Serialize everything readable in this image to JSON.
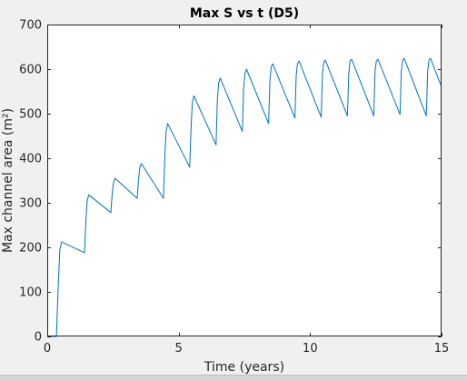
{
  "chart_data": {
    "type": "line",
    "title": "Max S vs t (D5)",
    "xlabel": "Time (years)",
    "ylabel": "Max channel area (m²)",
    "xlim": [
      0,
      15
    ],
    "ylim": [
      0,
      700
    ],
    "xticks": [
      0,
      5,
      10,
      15
    ],
    "yticks": [
      0,
      100,
      200,
      300,
      400,
      500,
      600,
      700
    ],
    "grid": false,
    "legend": "none",
    "series": [
      {
        "color": "#0072bd",
        "x": [
          0,
          0.35,
          0.42,
          0.48,
          0.55,
          1.42,
          1.47,
          1.52,
          1.58,
          2.42,
          2.47,
          2.52,
          2.58,
          3.42,
          3.47,
          3.52,
          3.58,
          4.42,
          4.47,
          4.52,
          4.58,
          5.42,
          5.47,
          5.52,
          5.58,
          6.42,
          6.47,
          6.52,
          6.58,
          7.42,
          7.47,
          7.52,
          7.58,
          8.42,
          8.47,
          8.52,
          8.58,
          9.42,
          9.47,
          9.52,
          9.58,
          10.42,
          10.47,
          10.52,
          10.58,
          11.42,
          11.47,
          11.52,
          11.58,
          12.42,
          12.47,
          12.52,
          12.58,
          13.42,
          13.47,
          13.52,
          13.58,
          14.42,
          14.47,
          14.52,
          14.58,
          15.0
        ],
        "y": [
          0,
          0,
          120,
          195,
          212,
          188,
          260,
          305,
          318,
          278,
          320,
          345,
          355,
          310,
          350,
          378,
          388,
          310,
          400,
          460,
          478,
          380,
          470,
          525,
          540,
          430,
          530,
          568,
          580,
          460,
          555,
          590,
          600,
          478,
          575,
          605,
          612,
          490,
          585,
          612,
          618,
          492,
          590,
          615,
          620,
          495,
          592,
          618,
          622,
          495,
          595,
          618,
          622,
          498,
          595,
          620,
          624,
          495,
          595,
          620,
          624,
          560
        ]
      }
    ]
  }
}
